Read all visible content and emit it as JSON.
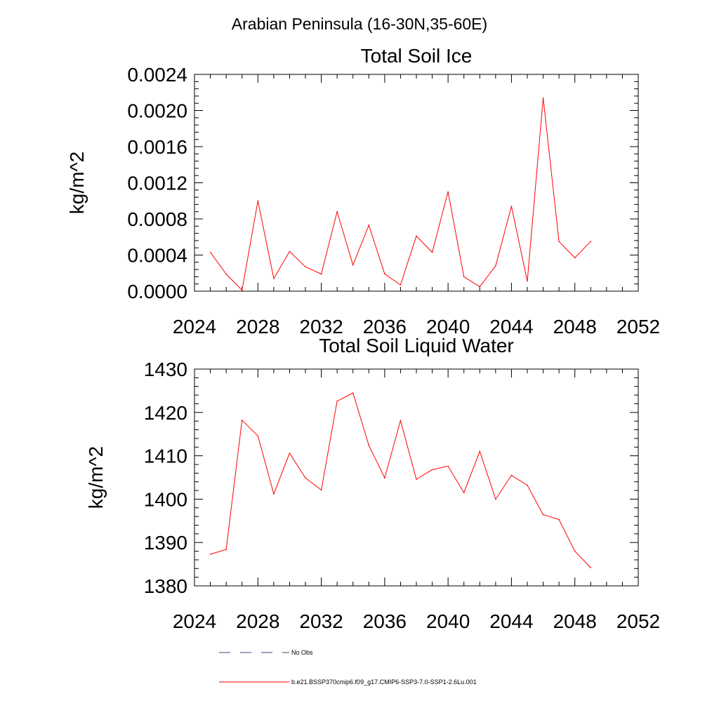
{
  "page_title": "Arabian Peninsula (16-30N,35-60E)",
  "chart_data": [
    {
      "type": "line",
      "title": "Total Soil Ice",
      "xlabel": "",
      "ylabel": "kg/m^2",
      "xlim": [
        2024,
        2052
      ],
      "ylim": [
        0,
        0.0024
      ],
      "xticks": [
        "2024",
        "2028",
        "2032",
        "2036",
        "2040",
        "2044",
        "2048",
        "2052"
      ],
      "yticks": [
        "0.0000",
        "0.0004",
        "0.0008",
        "0.0012",
        "0.0016",
        "0.0020",
        "0.0024"
      ],
      "grid": false,
      "x": [
        2025,
        2026,
        2027,
        2028,
        2029,
        2030,
        2031,
        2032,
        2033,
        2034,
        2035,
        2036,
        2037,
        2038,
        2039,
        2040,
        2041,
        2042,
        2043,
        2044,
        2045,
        2046,
        2047,
        2048,
        2049
      ],
      "series": [
        {
          "name": "b.e21.BSSP370cmip6.f09_g17.CMIP6-SSP3-7.0-SSP1-2.6Lu.001",
          "color": "#ff0000",
          "values": [
            0.00043,
            0.00019,
            1e-05,
            0.001,
            0.00014,
            0.00044,
            0.00027,
            0.00019,
            0.00088,
            0.00029,
            0.00073,
            0.00019,
            7e-05,
            0.00061,
            0.00043,
            0.0011,
            0.00016,
            5e-05,
            0.00028,
            0.00094,
            0.00011,
            0.00214,
            0.00055,
            0.00037,
            0.00055
          ]
        }
      ]
    },
    {
      "type": "line",
      "title": "Total Soil Liquid Water",
      "xlabel": "",
      "ylabel": "kg/m^2",
      "xlim": [
        2024,
        2052
      ],
      "ylim": [
        1380,
        1430
      ],
      "xticks": [
        "2024",
        "2028",
        "2032",
        "2036",
        "2040",
        "2044",
        "2048",
        "2052"
      ],
      "yticks": [
        "1380",
        "1390",
        "1400",
        "1410",
        "1420",
        "1430"
      ],
      "grid": false,
      "x": [
        2025,
        2026,
        2027,
        2028,
        2029,
        2030,
        2031,
        2032,
        2033,
        2034,
        2035,
        2036,
        2037,
        2038,
        2039,
        2040,
        2041,
        2042,
        2043,
        2044,
        2045,
        2046,
        2047,
        2048,
        2049
      ],
      "series": [
        {
          "name": "b.e21.BSSP370cmip6.f09_g17.CMIP6-SSP3-7.0-SSP1-2.6Lu.001",
          "color": "#ff0000",
          "values": [
            1387.3,
            1388.4,
            1418.2,
            1414.6,
            1401.2,
            1410.6,
            1404.9,
            1402.1,
            1422.6,
            1424.5,
            1412.4,
            1404.9,
            1418.1,
            1404.6,
            1406.8,
            1407.6,
            1401.5,
            1411.0,
            1400.0,
            1405.5,
            1403.2,
            1396.4,
            1395.3,
            1388.0,
            1384.2
          ]
        }
      ]
    }
  ],
  "legend": {
    "placement": "bottom",
    "items": [
      {
        "label": "No Obs",
        "color": "#3c3c78",
        "style": "dashed"
      },
      {
        "label": "b.e21.BSSP370cmip6.f09_g17.CMIP6-SSP3-7.0-SSP1-2.6Lu.001",
        "color": "#ff0000",
        "style": "solid"
      }
    ]
  }
}
